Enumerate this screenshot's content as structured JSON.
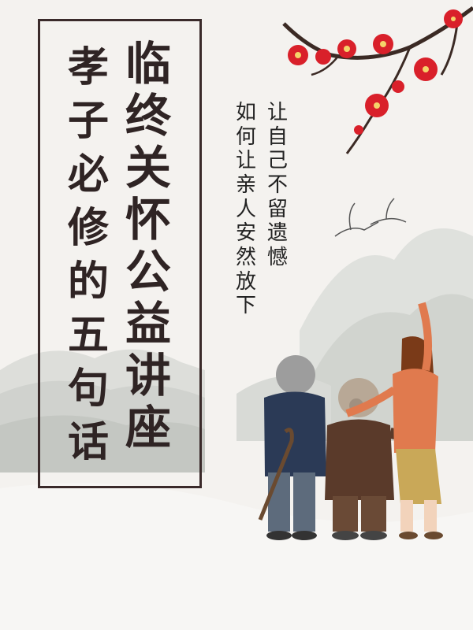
{
  "title": {
    "line_right": "临终关怀公益讲座",
    "line_left": "孝子必修的五句话"
  },
  "subtitle": {
    "line_right": "让自己不留遗憾",
    "line_left": "如何让亲人安然放下"
  },
  "icons": [
    "plum-blossom-branch-icon",
    "crane-bird-icon",
    "mountain-landscape-icon",
    "elderly-man-figure-icon",
    "elderly-woman-figure-icon",
    "young-woman-figure-icon"
  ],
  "colors": {
    "background": "#f4f2ef",
    "frame": "#3a2a2a",
    "title_text": "#2f2424",
    "blossom": "#d9202a",
    "mountain": "#c9ccc8"
  }
}
